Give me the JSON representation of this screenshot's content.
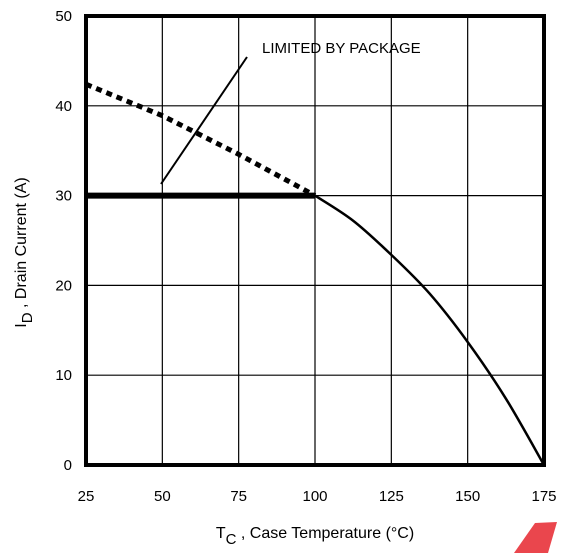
{
  "chart_data": {
    "type": "line",
    "title": "",
    "xlabel_main": "T",
    "xlabel_sub": "C",
    "xlabel_rest": " , Case Temperature (°C)",
    "ylabel_main": "I",
    "ylabel_sub": "D",
    "ylabel_rest": " , Drain Current (A)",
    "xlim": [
      25,
      175
    ],
    "ylim": [
      0,
      50
    ],
    "x_ticks": [
      25,
      50,
      75,
      100,
      125,
      150,
      175
    ],
    "y_ticks": [
      0,
      10,
      20,
      30,
      40,
      50
    ],
    "grid": true,
    "annotation": "LIMITED BY PACKAGE",
    "series": [
      {
        "style": "solid",
        "x": [
          25,
          100
        ],
        "y": [
          30,
          30
        ]
      },
      {
        "style": "dotted",
        "x": [
          25,
          50,
          75,
          100
        ],
        "y": [
          42.4,
          38.9,
          34.6,
          30
        ]
      },
      {
        "style": "solid",
        "x": [
          100,
          112.5,
          125,
          137.5,
          150,
          162.5,
          175
        ],
        "y": [
          30,
          27.2,
          23.4,
          19.1,
          13.7,
          7.4,
          0
        ]
      }
    ],
    "colors": {
      "line": "#000000",
      "background": "#ffffff"
    }
  }
}
